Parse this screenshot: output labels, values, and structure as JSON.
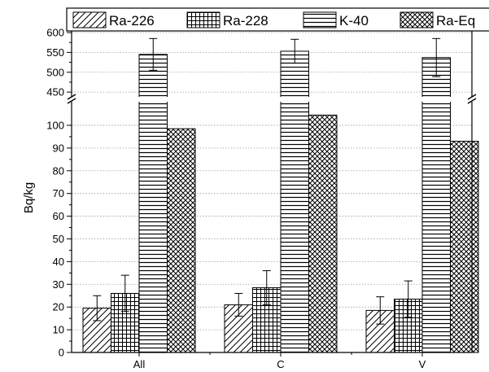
{
  "chart_data": {
    "type": "bar",
    "title": "",
    "xlabel": "",
    "ylabel": "Bq/kg",
    "categories": [
      "All",
      "C",
      "V"
    ],
    "y_axis_break": {
      "lower_range": [
        0,
        105
      ],
      "upper_range": [
        440,
        600
      ]
    },
    "yticks_lower": [
      0,
      10,
      20,
      30,
      40,
      50,
      60,
      70,
      80,
      90,
      100
    ],
    "yticks_upper": [
      450,
      500,
      550,
      600
    ],
    "grid": "horizontal dotted",
    "legend_position": "top",
    "series": [
      {
        "name": "Ra-226",
        "pattern": "diagonal-hatch",
        "values": [
          19.5,
          21,
          18.5
        ],
        "errors": [
          5.5,
          5,
          6
        ]
      },
      {
        "name": "Ra-228",
        "pattern": "grid-hatch",
        "values": [
          26,
          28.5,
          23.5
        ],
        "errors": [
          8,
          7.5,
          8
        ]
      },
      {
        "name": "K-40",
        "pattern": "horizontal-hatch",
        "values": [
          545,
          553,
          537
        ],
        "errors": [
          40,
          30,
          48
        ]
      },
      {
        "name": "Ra-Eq",
        "pattern": "crosshatch",
        "values": [
          98.5,
          104.5,
          93
        ],
        "errors": [
          0,
          0,
          0
        ]
      }
    ]
  }
}
